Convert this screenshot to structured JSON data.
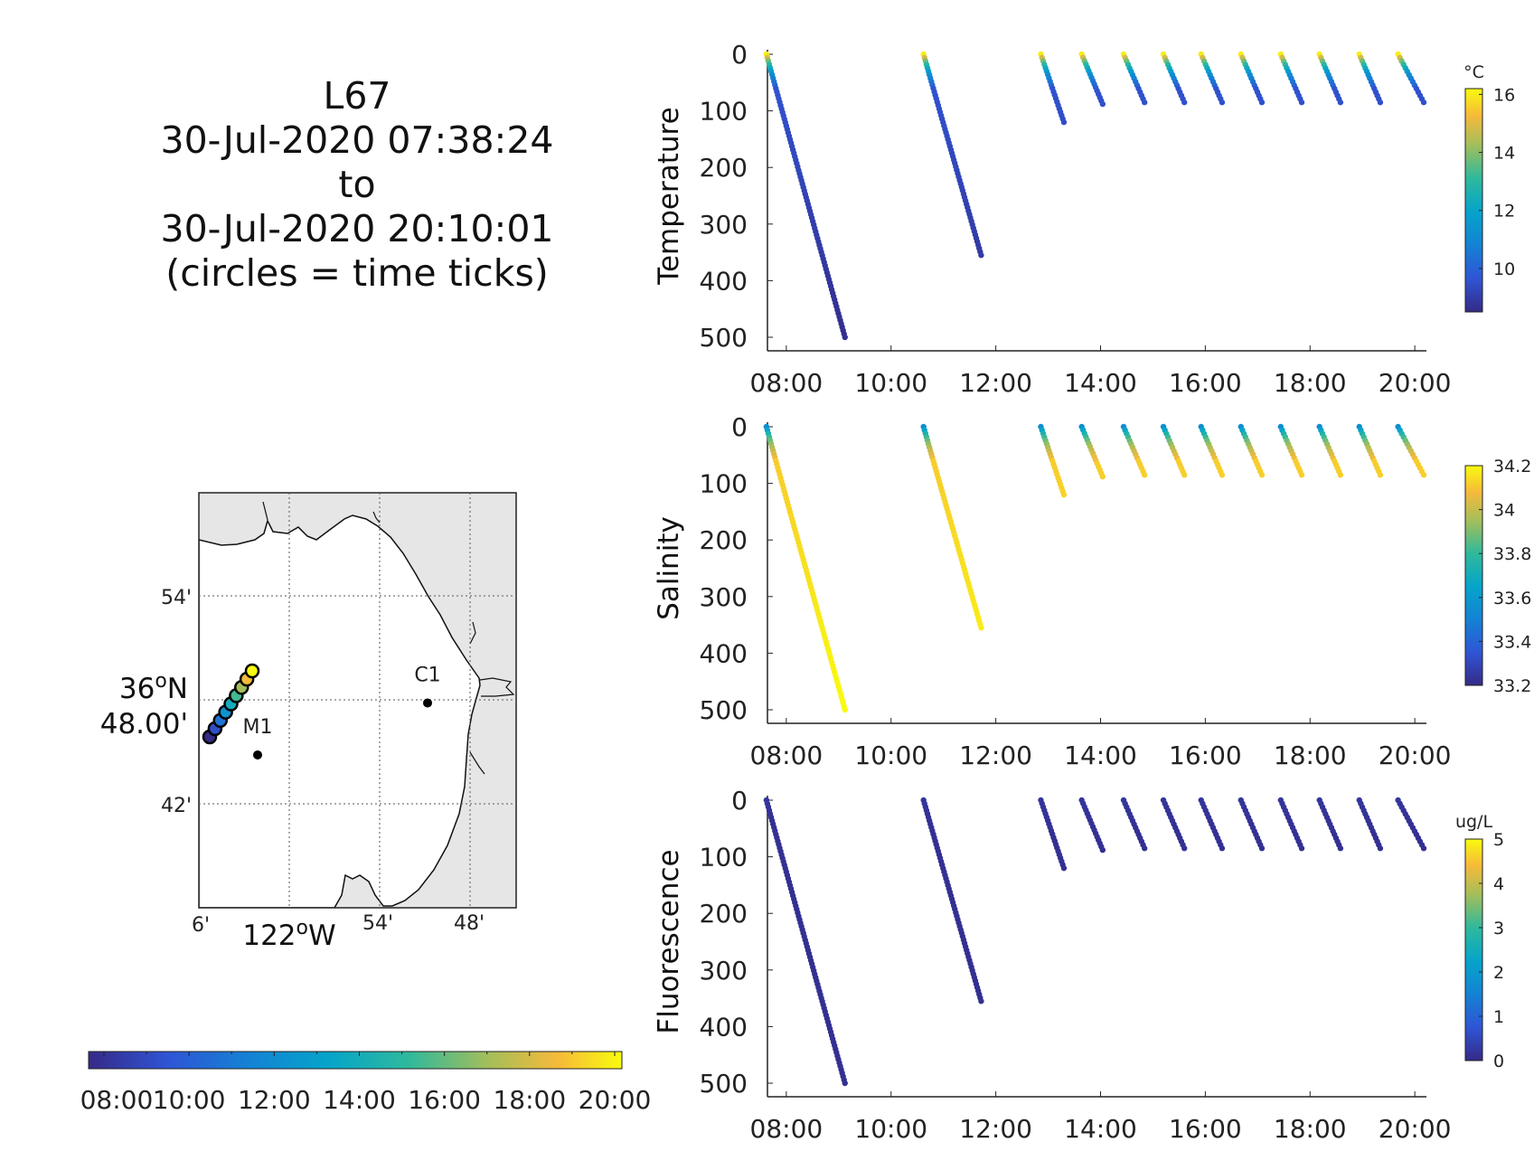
{
  "title": {
    "lines": [
      "L67",
      "30-Jul-2020 07:38:24",
      "to",
      "30-Jul-2020 20:10:01",
      "(circles = time ticks)"
    ]
  },
  "map": {
    "lat_ticks": [
      "54'",
      "42'"
    ],
    "lat_major": [
      "36",
      "o",
      "N",
      "48.00'"
    ],
    "lon_ticks": [
      "6'",
      "54'",
      "48'"
    ],
    "lon_major": [
      "122",
      "o",
      "W"
    ],
    "stations": [
      {
        "name": "M1",
        "lon_min_w": 122.035,
        "lat": 36.747
      },
      {
        "name": "C1",
        "lon_min_w": 121.847,
        "lat": 36.797
      }
    ],
    "track_circle_count": 9
  },
  "time_colorbar": {
    "tick_labels": [
      "08:00",
      "10:00",
      "12:00",
      "14:00",
      "16:00",
      "18:00",
      "20:00"
    ],
    "range_hours": [
      7.64,
      20.17
    ]
  },
  "chart_data": [
    {
      "type": "scatter",
      "panel": "temperature",
      "ylabel": "Temperature",
      "xlabel": "",
      "x_tick_labels": [
        "08:00",
        "10:00",
        "12:00",
        "14:00",
        "16:00",
        "18:00",
        "20:00"
      ],
      "y_tick_labels": [
        "0",
        "100",
        "200",
        "300",
        "400",
        "500"
      ],
      "xlim_hours": [
        7.64,
        20.17
      ],
      "ylim": [
        0,
        500
      ],
      "y_reversed": true,
      "colorbar": {
        "units": "°C",
        "range": [
          8.5,
          16.2
        ],
        "tick_labels": [
          "16",
          "14",
          "12",
          "10"
        ],
        "tick_values": [
          16,
          14,
          12,
          10
        ]
      },
      "surface_value": 16.0,
      "deep_value": 8.6
    },
    {
      "type": "scatter",
      "panel": "salinity",
      "ylabel": "Salinity",
      "xlabel": "",
      "x_tick_labels": [
        "08:00",
        "10:00",
        "12:00",
        "14:00",
        "16:00",
        "18:00",
        "20:00"
      ],
      "y_tick_labels": [
        "0",
        "100",
        "200",
        "300",
        "400",
        "500"
      ],
      "xlim_hours": [
        7.64,
        20.17
      ],
      "ylim": [
        0,
        500
      ],
      "y_reversed": true,
      "colorbar": {
        "units": "",
        "range": [
          33.2,
          34.2
        ],
        "tick_labels": [
          "34.2",
          "34",
          "33.8",
          "33.6",
          "33.4",
          "33.2"
        ],
        "tick_values": [
          34.2,
          34.0,
          33.8,
          33.6,
          33.4,
          33.2
        ]
      },
      "surface_value": 33.55,
      "deep_value": 34.2
    },
    {
      "type": "scatter",
      "panel": "fluorescence",
      "ylabel": "Fluorescence",
      "xlabel": "",
      "x_tick_labels": [
        "08:00",
        "10:00",
        "12:00",
        "14:00",
        "16:00",
        "18:00",
        "20:00"
      ],
      "y_tick_labels": [
        "0",
        "100",
        "200",
        "300",
        "400",
        "500"
      ],
      "xlim_hours": [
        7.64,
        20.17
      ],
      "ylim": [
        0,
        500
      ],
      "y_reversed": true,
      "colorbar": {
        "units": "ug/L",
        "range": [
          0,
          5
        ],
        "tick_labels": [
          "5",
          "4",
          "3",
          "2",
          "1",
          "0"
        ],
        "tick_values": [
          5,
          4,
          3,
          2,
          1,
          0
        ]
      },
      "surface_value": 0.2,
      "deep_value": 0.1
    }
  ],
  "profiles": [
    {
      "t_start": 7.62,
      "t_end": 9.12,
      "max_depth": 500
    },
    {
      "t_start": 10.62,
      "t_end": 11.72,
      "max_depth": 355
    },
    {
      "t_start": 12.86,
      "t_end": 13.3,
      "max_depth": 120
    },
    {
      "t_start": 13.64,
      "t_end": 14.04,
      "max_depth": 88
    },
    {
      "t_start": 14.44,
      "t_end": 14.84,
      "max_depth": 85
    },
    {
      "t_start": 15.2,
      "t_end": 15.6,
      "max_depth": 85
    },
    {
      "t_start": 15.92,
      "t_end": 16.32,
      "max_depth": 85
    },
    {
      "t_start": 16.68,
      "t_end": 17.08,
      "max_depth": 85
    },
    {
      "t_start": 17.44,
      "t_end": 17.84,
      "max_depth": 85
    },
    {
      "t_start": 18.18,
      "t_end": 18.58,
      "max_depth": 85
    },
    {
      "t_start": 18.94,
      "t_end": 19.34,
      "max_depth": 85
    },
    {
      "t_start": 19.68,
      "t_end": 20.17,
      "max_depth": 85
    }
  ]
}
